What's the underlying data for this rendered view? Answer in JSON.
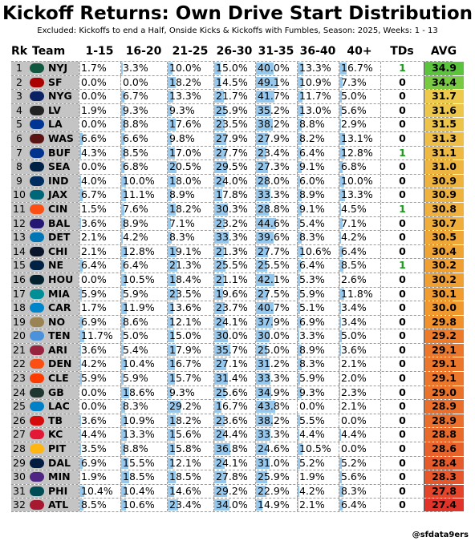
{
  "title": "Kickoff Returns: Own Drive Start Distribution",
  "subtitle": "Excluded: Kickoffs to end a Half, Onside Kicks & Kickoffs with Fumbles, Season: 2025, Weeks: 1 - 13",
  "credit": "@sfdata9ers",
  "headers": {
    "rk": "Rk",
    "team": "Team",
    "buckets": [
      "1-15",
      "16-20",
      "21-25",
      "26-30",
      "31-35",
      "36-40",
      "40+"
    ],
    "tds": "TDs",
    "avg": "AVG"
  },
  "colors": {
    "bar": "#95c8ec",
    "td_positive": "#1a9a1a",
    "rk_bg": "#c4c4c4"
  },
  "chart_data": {
    "type": "table",
    "title": "Kickoff Returns: Own Drive Start Distribution",
    "columns": [
      "Rk",
      "Team",
      "1-15",
      "16-20",
      "21-25",
      "26-30",
      "31-35",
      "36-40",
      "40+",
      "TDs",
      "AVG"
    ],
    "rows": [
      {
        "rk": 1,
        "team": "NYJ",
        "pct": [
          1.7,
          3.3,
          10.0,
          15.0,
          40.0,
          13.3,
          16.7
        ],
        "tds": 1,
        "avg": 34.9
      },
      {
        "rk": 2,
        "team": "SF",
        "pct": [
          0.0,
          0.0,
          18.2,
          14.5,
          49.1,
          10.9,
          7.3
        ],
        "tds": 0,
        "avg": 34.4
      },
      {
        "rk": 3,
        "team": "NYG",
        "pct": [
          0.0,
          6.7,
          13.3,
          21.7,
          41.7,
          11.7,
          5.0
        ],
        "tds": 0,
        "avg": 31.7
      },
      {
        "rk": 4,
        "team": "LV",
        "pct": [
          1.9,
          9.3,
          9.3,
          25.9,
          35.2,
          13.0,
          5.6
        ],
        "tds": 0,
        "avg": 31.6
      },
      {
        "rk": 5,
        "team": "LA",
        "pct": [
          0.0,
          8.8,
          17.6,
          23.5,
          38.2,
          8.8,
          2.9
        ],
        "tds": 0,
        "avg": 31.5
      },
      {
        "rk": 6,
        "team": "WAS",
        "pct": [
          6.6,
          6.6,
          9.8,
          27.9,
          27.9,
          8.2,
          13.1
        ],
        "tds": 0,
        "avg": 31.3
      },
      {
        "rk": 7,
        "team": "BUF",
        "pct": [
          4.3,
          8.5,
          17.0,
          27.7,
          23.4,
          6.4,
          12.8
        ],
        "tds": 1,
        "avg": 31.1
      },
      {
        "rk": 8,
        "team": "SEA",
        "pct": [
          0.0,
          6.8,
          20.5,
          29.5,
          27.3,
          9.1,
          6.8
        ],
        "tds": 0,
        "avg": 31.0
      },
      {
        "rk": 9,
        "team": "IND",
        "pct": [
          4.0,
          10.0,
          18.0,
          24.0,
          28.0,
          6.0,
          10.0
        ],
        "tds": 0,
        "avg": 30.9
      },
      {
        "rk": 10,
        "team": "JAX",
        "pct": [
          6.7,
          11.1,
          8.9,
          17.8,
          33.3,
          8.9,
          13.3
        ],
        "tds": 0,
        "avg": 30.9
      },
      {
        "rk": 11,
        "team": "CIN",
        "pct": [
          1.5,
          7.6,
          18.2,
          30.3,
          28.8,
          9.1,
          4.5
        ],
        "tds": 1,
        "avg": 30.8
      },
      {
        "rk": 12,
        "team": "BAL",
        "pct": [
          3.6,
          8.9,
          7.1,
          23.2,
          44.6,
          5.4,
          7.1
        ],
        "tds": 0,
        "avg": 30.7
      },
      {
        "rk": 13,
        "team": "DET",
        "pct": [
          2.1,
          4.2,
          8.3,
          33.3,
          39.6,
          8.3,
          4.2
        ],
        "tds": 0,
        "avg": 30.5
      },
      {
        "rk": 14,
        "team": "CHI",
        "pct": [
          2.1,
          12.8,
          19.1,
          21.3,
          27.7,
          10.6,
          6.4
        ],
        "tds": 0,
        "avg": 30.4
      },
      {
        "rk": 15,
        "team": "NE",
        "pct": [
          6.4,
          6.4,
          21.3,
          25.5,
          25.5,
          6.4,
          8.5
        ],
        "tds": 1,
        "avg": 30.2
      },
      {
        "rk": 16,
        "team": "HOU",
        "pct": [
          0.0,
          10.5,
          18.4,
          21.1,
          42.1,
          5.3,
          2.6
        ],
        "tds": 0,
        "avg": 30.2
      },
      {
        "rk": 17,
        "team": "MIA",
        "pct": [
          5.9,
          5.9,
          23.5,
          19.6,
          27.5,
          5.9,
          11.8
        ],
        "tds": 0,
        "avg": 30.1
      },
      {
        "rk": 18,
        "team": "CAR",
        "pct": [
          1.7,
          11.9,
          13.6,
          23.7,
          40.7,
          5.1,
          3.4
        ],
        "tds": 0,
        "avg": 30.0
      },
      {
        "rk": 19,
        "team": "NO",
        "pct": [
          6.9,
          8.6,
          12.1,
          24.1,
          37.9,
          6.9,
          3.4
        ],
        "tds": 0,
        "avg": 29.8
      },
      {
        "rk": 20,
        "team": "TEN",
        "pct": [
          11.7,
          5.0,
          15.0,
          30.0,
          30.0,
          3.3,
          5.0
        ],
        "tds": 0,
        "avg": 29.2
      },
      {
        "rk": 21,
        "team": "ARI",
        "pct": [
          3.6,
          5.4,
          17.9,
          35.7,
          25.0,
          8.9,
          3.6
        ],
        "tds": 0,
        "avg": 29.1
      },
      {
        "rk": 22,
        "team": "DEN",
        "pct": [
          4.2,
          10.4,
          16.7,
          27.1,
          31.2,
          8.3,
          2.1
        ],
        "tds": 0,
        "avg": 29.1
      },
      {
        "rk": 23,
        "team": "CLE",
        "pct": [
          5.9,
          5.9,
          15.7,
          31.4,
          33.3,
          5.9,
          2.0
        ],
        "tds": 0,
        "avg": 29.1
      },
      {
        "rk": 24,
        "team": "GB",
        "pct": [
          0.0,
          18.6,
          9.3,
          25.6,
          34.9,
          9.3,
          2.3
        ],
        "tds": 0,
        "avg": 29.0
      },
      {
        "rk": 25,
        "team": "LAC",
        "pct": [
          0.0,
          8.3,
          29.2,
          16.7,
          43.8,
          0.0,
          2.1
        ],
        "tds": 0,
        "avg": 28.9
      },
      {
        "rk": 26,
        "team": "TB",
        "pct": [
          3.6,
          10.9,
          18.2,
          23.6,
          38.2,
          5.5,
          0.0
        ],
        "tds": 0,
        "avg": 28.9
      },
      {
        "rk": 27,
        "team": "KC",
        "pct": [
          4.4,
          13.3,
          15.6,
          24.4,
          33.3,
          4.4,
          4.4
        ],
        "tds": 0,
        "avg": 28.8
      },
      {
        "rk": 28,
        "team": "PIT",
        "pct": [
          3.5,
          8.8,
          15.8,
          36.8,
          24.6,
          10.5,
          0.0
        ],
        "tds": 0,
        "avg": 28.6
      },
      {
        "rk": 29,
        "team": "DAL",
        "pct": [
          6.9,
          15.5,
          12.1,
          24.1,
          31.0,
          5.2,
          5.2
        ],
        "tds": 0,
        "avg": 28.4
      },
      {
        "rk": 30,
        "team": "MIN",
        "pct": [
          1.9,
          18.5,
          18.5,
          27.8,
          25.9,
          1.9,
          5.6
        ],
        "tds": 0,
        "avg": 28.3
      },
      {
        "rk": 31,
        "team": "PHI",
        "pct": [
          10.4,
          10.4,
          14.6,
          29.2,
          22.9,
          4.2,
          8.3
        ],
        "tds": 0,
        "avg": 27.8
      },
      {
        "rk": 32,
        "team": "ATL",
        "pct": [
          8.5,
          10.6,
          23.4,
          34.0,
          14.9,
          2.1,
          6.4
        ],
        "tds": 0,
        "avg": 27.4
      }
    ]
  },
  "team_colors": {
    "NYJ": "#125740",
    "SF": "#aa0000",
    "NYG": "#0b2265",
    "LV": "#222222",
    "LA": "#003594",
    "WAS": "#5a1414",
    "BUF": "#00338d",
    "SEA": "#002244",
    "IND": "#002c5f",
    "JAX": "#006778",
    "CIN": "#fb4f14",
    "BAL": "#241773",
    "DET": "#0076b6",
    "CHI": "#0b162a",
    "NE": "#002244",
    "HOU": "#03202f",
    "MIA": "#008e97",
    "CAR": "#0085ca",
    "NO": "#9a8454",
    "TEN": "#4b92db",
    "ARI": "#97233f",
    "DEN": "#fb4f14",
    "CLE": "#ff3c00",
    "GB": "#203731",
    "LAC": "#0080c6",
    "TB": "#d50a0a",
    "KC": "#e31837",
    "PIT": "#ffb612",
    "DAL": "#041e42",
    "MIN": "#4f2683",
    "PHI": "#004c54",
    "ATL": "#a71930"
  }
}
